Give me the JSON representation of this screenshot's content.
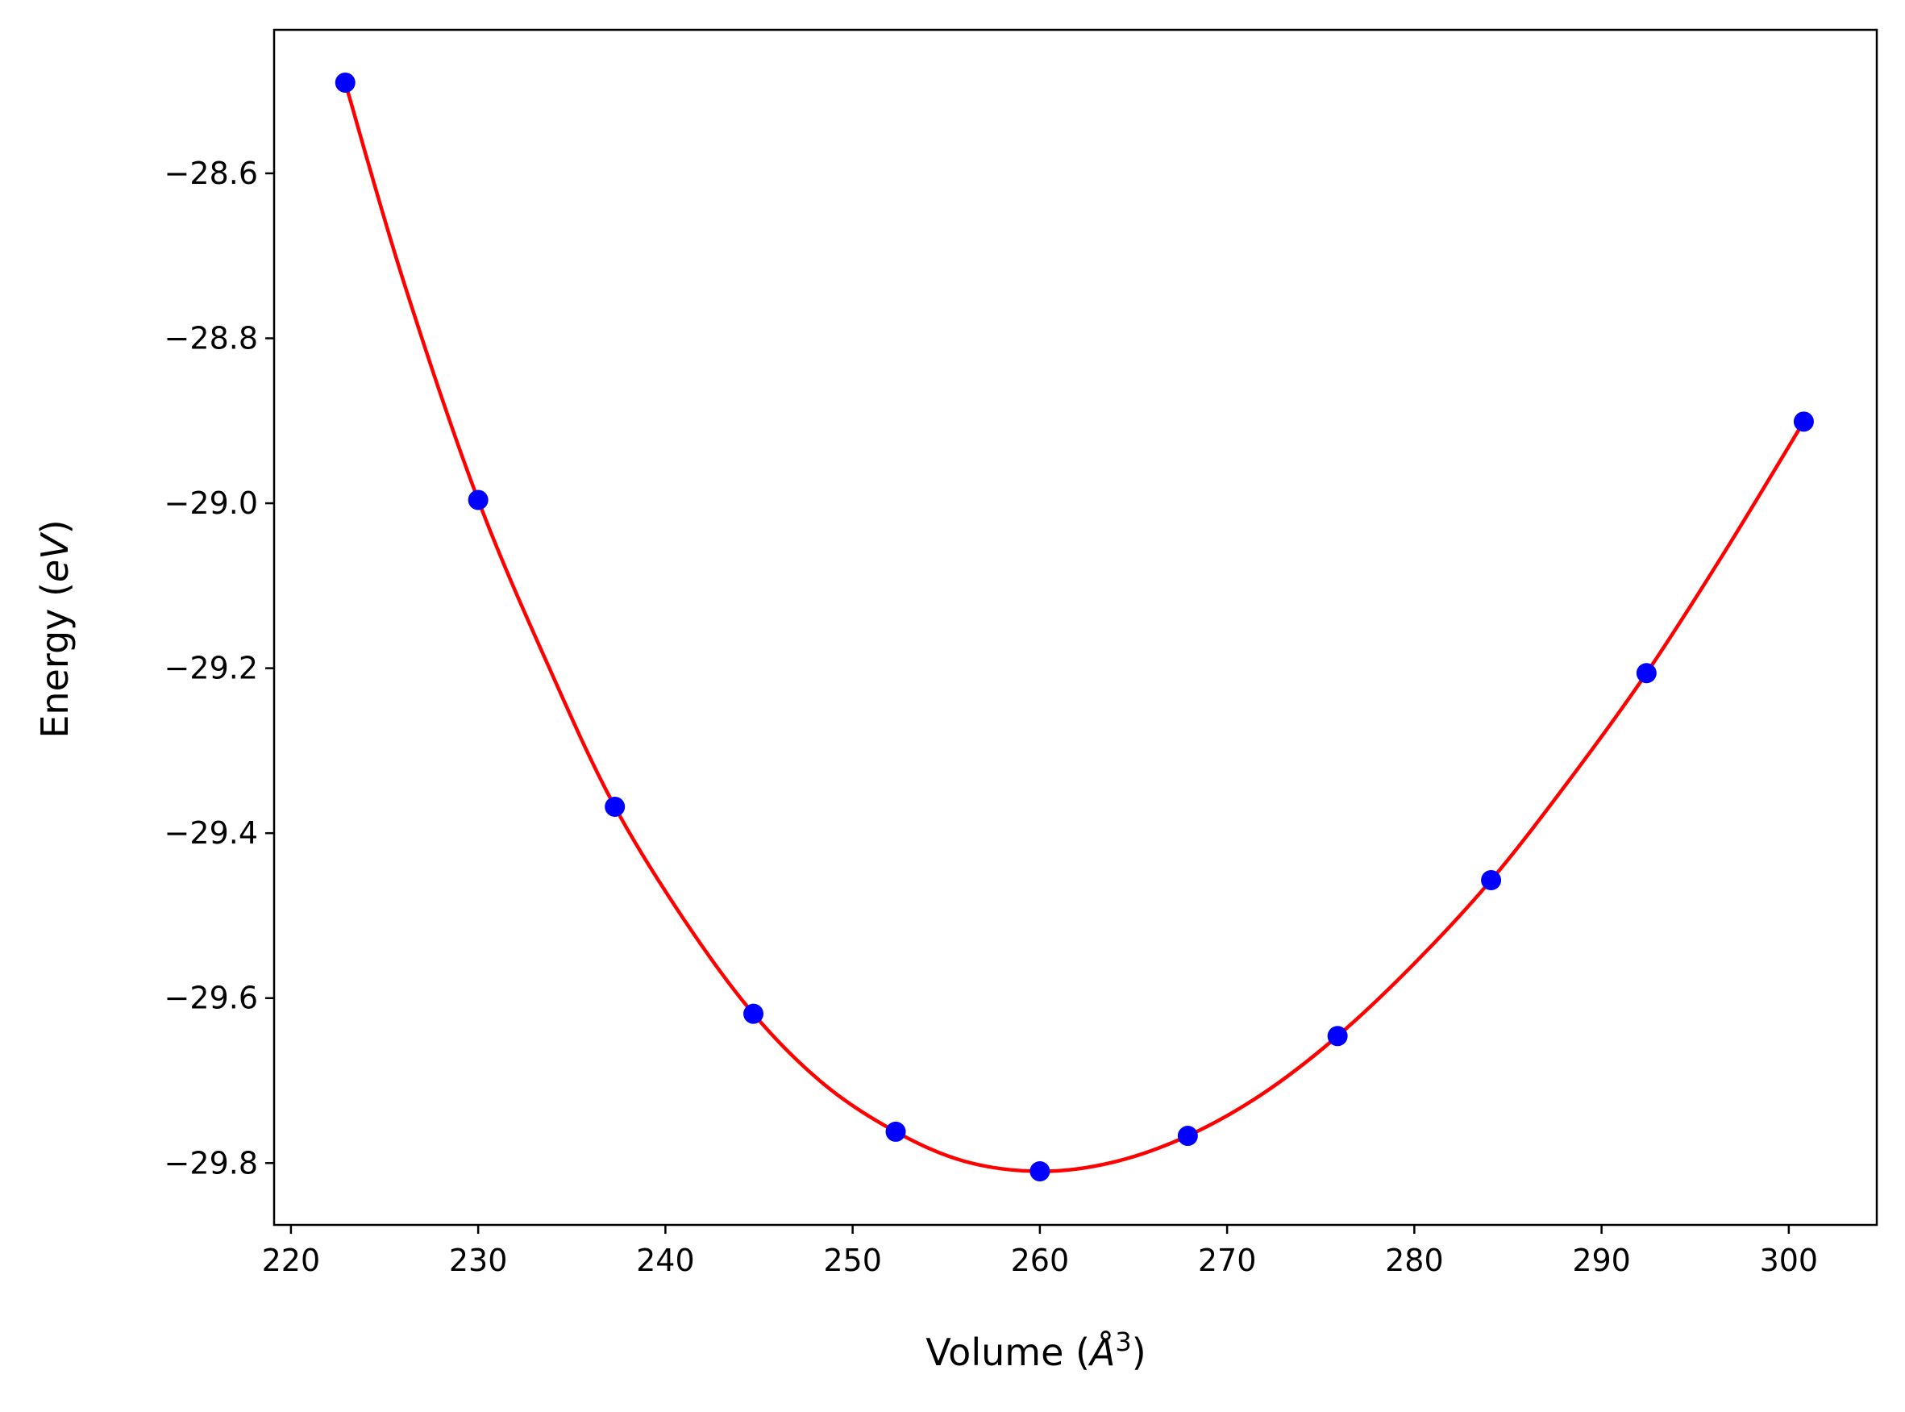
{
  "chart_data": {
    "type": "line",
    "title": "",
    "xlabel": "Volume (Å³)",
    "ylabel": "Energy (eV)",
    "axis_label_parts": {
      "x_prefix": "Volume (",
      "x_unit": "Å",
      "x_power": "3",
      "x_suffix": ")",
      "y_prefix": "Energy (",
      "y_unit": "eV",
      "y_suffix": ")"
    },
    "xlim": [
      219.1,
      304.7
    ],
    "ylim": [
      -29.875,
      -28.426
    ],
    "xticks": [
      220,
      230,
      240,
      250,
      260,
      270,
      280,
      290,
      300
    ],
    "yticks": [
      -28.6,
      -28.8,
      -29.0,
      -29.2,
      -29.4,
      -29.6,
      -29.8
    ],
    "xtick_labels": [
      "220",
      "230",
      "240",
      "250",
      "260",
      "270",
      "280",
      "290",
      "300"
    ],
    "ytick_labels": [
      "−28.6",
      "−28.8",
      "−29.0",
      "−29.2",
      "−29.4",
      "−29.6",
      "−29.8"
    ],
    "grid": false,
    "series": [
      {
        "kind": "points",
        "color": "#0000ff",
        "x": [
          222.9,
          230.0,
          237.3,
          244.7,
          252.3,
          260.0,
          267.9,
          275.9,
          284.1,
          292.4,
          300.8
        ],
        "y": [
          -28.49,
          -28.996,
          -29.368,
          -29.619,
          -29.762,
          -29.81,
          -29.767,
          -29.646,
          -29.457,
          -29.206,
          -28.901
        ]
      },
      {
        "kind": "fit-curve",
        "color": "#ff0000",
        "x": [
          222.9,
          226.0,
          230.0,
          234.0,
          237.3,
          241.0,
          244.7,
          248.5,
          252.3,
          256.0,
          260.0,
          263.9,
          267.9,
          271.9,
          275.9,
          280.0,
          284.1,
          288.2,
          292.4,
          296.6,
          300.8
        ],
        "y": [
          -28.49,
          -28.73,
          -28.996,
          -29.21,
          -29.368,
          -29.505,
          -29.619,
          -29.705,
          -29.762,
          -29.798,
          -29.81,
          -29.799,
          -29.767,
          -29.716,
          -29.646,
          -29.558,
          -29.457,
          -29.338,
          -29.206,
          -29.058,
          -28.901
        ]
      }
    ]
  }
}
